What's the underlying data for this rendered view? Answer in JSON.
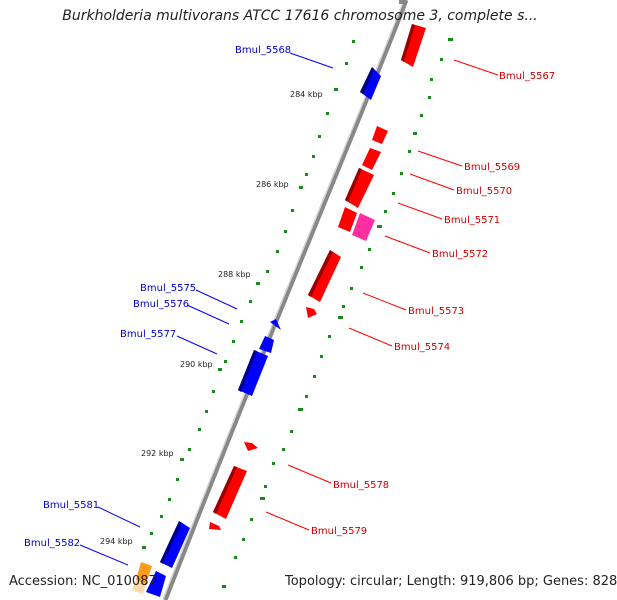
{
  "title": "Burkholderia multivorans ATCC 17616 chromosome 3, complete s...",
  "footer": {
    "accession": "Accession: NC_010087",
    "summary": "Topology: circular; Length: 919,806 bp; Genes: 828"
  },
  "colors": {
    "forward_gene": "#ff0000",
    "reverse_gene": "#0000ff",
    "highlight_gene": "#ff2f9f",
    "orange_gene": "#ff9a1a",
    "backbone": "#888888",
    "tick": "#1a8a1a",
    "forward_label": "#cc0000",
    "reverse_label": "#0000cc"
  },
  "ticks": [
    {
      "label": "284 kbp"
    },
    {
      "label": "286 kbp"
    },
    {
      "label": "288 kbp"
    },
    {
      "label": "290 kbp"
    },
    {
      "label": "292 kbp"
    },
    {
      "label": "294 kbp"
    }
  ],
  "gene_labels": {
    "forward": [
      "Bmul_5567",
      "Bmul_5569",
      "Bmul_5570",
      "Bmul_5571",
      "Bmul_5572",
      "Bmul_5573",
      "Bmul_5574",
      "Bmul_5578",
      "Bmul_5579"
    ],
    "reverse": [
      "Bmul_5568",
      "Bmul_5575",
      "Bmul_5576",
      "Bmul_5577",
      "Bmul_5581",
      "Bmul_5582"
    ]
  }
}
